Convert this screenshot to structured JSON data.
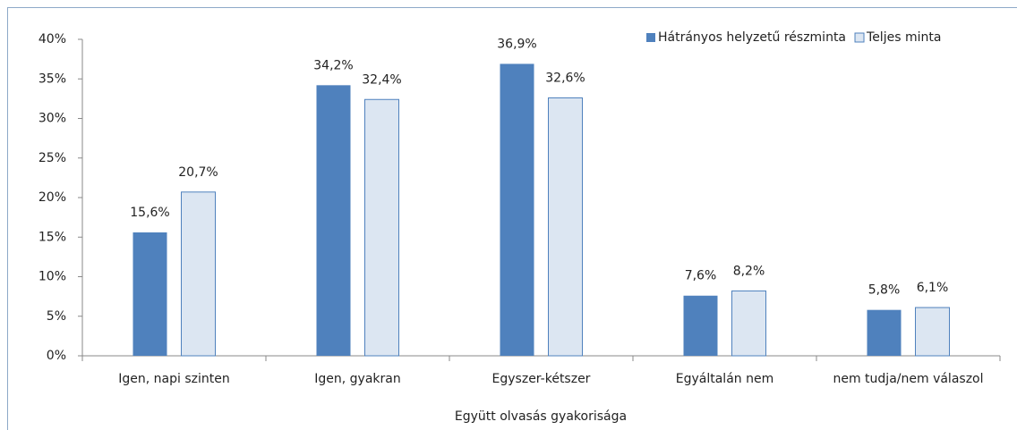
{
  "chart_data": {
    "type": "bar",
    "x_label": "Együtt olvasás gyakorisága",
    "categories": [
      "Igen, napi szinten",
      "Igen, gyakran",
      "Egyszer-kétszer",
      "Egyáltalán nem",
      "nem tudja/nem válaszol"
    ],
    "series": [
      {
        "name": "Hátrányos helyzetű részminta",
        "color": "#4f81bd",
        "values": [
          15.6,
          34.2,
          36.9,
          7.6,
          5.8
        ],
        "value_labels": [
          "15,6%",
          "34,2%",
          "36,9%",
          "7,6%",
          "5,8%"
        ]
      },
      {
        "name": "Teljes minta",
        "color": "#dce6f2",
        "values": [
          20.7,
          32.4,
          32.6,
          8.2,
          6.1
        ],
        "value_labels": [
          "20,7%",
          "32,4%",
          "32,6%",
          "8,2%",
          "6,1%"
        ]
      }
    ],
    "ylim": [
      0,
      40
    ],
    "yticks": [
      {
        "value": 0,
        "label": "0%"
      },
      {
        "value": 5,
        "label": "5%"
      },
      {
        "value": 10,
        "label": "10%"
      },
      {
        "value": 15,
        "label": "15%"
      },
      {
        "value": 20,
        "label": "20%"
      },
      {
        "value": 25,
        "label": "25%"
      },
      {
        "value": 30,
        "label": "30%"
      },
      {
        "value": 35,
        "label": "35%"
      },
      {
        "value": 40,
        "label": "40%"
      }
    ],
    "legend": "top-right"
  }
}
